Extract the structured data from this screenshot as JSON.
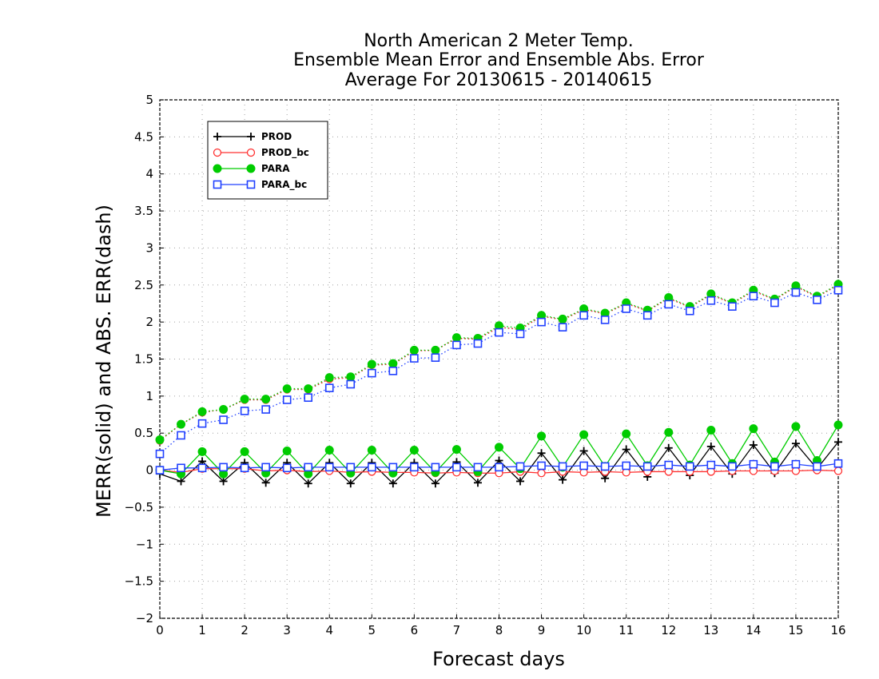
{
  "chart_data": {
    "type": "line",
    "title": [
      "North American 2 Meter Temp.",
      "Ensemble Mean Error and Ensemble Abs. Error",
      "Average For 20130615 - 20140615"
    ],
    "xlabel": "Forecast days",
    "ylabel": "MERR(solid) and ABS. ERR(dash)",
    "xlim": [
      0,
      16
    ],
    "ylim": [
      -2,
      5
    ],
    "x_ticks": [
      0,
      1,
      2,
      3,
      4,
      5,
      6,
      7,
      8,
      9,
      10,
      11,
      12,
      13,
      14,
      15,
      16
    ],
    "y_ticks": [
      -2,
      -1.5,
      -1,
      -0.5,
      0,
      0.5,
      1,
      1.5,
      2,
      2.5,
      3,
      3.5,
      4,
      4.5,
      5
    ],
    "grid": true,
    "legend_position": "top-left",
    "x": [
      0,
      0.5,
      1,
      1.5,
      2,
      2.5,
      3,
      3.5,
      4,
      4.5,
      5,
      5.5,
      6,
      6.5,
      7,
      7.5,
      8,
      8.5,
      9,
      9.5,
      10,
      10.5,
      11,
      11.5,
      12,
      12.5,
      13,
      13.5,
      14,
      14.5,
      15,
      15.5,
      16
    ],
    "series": [
      {
        "name": "PROD",
        "color": "#000000",
        "marker": "plus",
        "merr": [
          -0.05,
          -0.15,
          0.12,
          -0.15,
          0.1,
          -0.17,
          0.1,
          -0.18,
          0.1,
          -0.18,
          0.1,
          -0.18,
          0.1,
          -0.18,
          0.11,
          -0.17,
          0.13,
          -0.15,
          0.23,
          -0.13,
          0.26,
          -0.11,
          0.28,
          -0.09,
          0.3,
          -0.07,
          0.32,
          -0.05,
          0.34,
          -0.04,
          0.36,
          0.02,
          0.38
        ],
        "abs_err": [
          0.4,
          0.62,
          0.78,
          0.82,
          0.95,
          0.95,
          1.09,
          1.09,
          1.23,
          1.25,
          1.42,
          1.43,
          1.61,
          1.62,
          1.78,
          1.77,
          1.93,
          1.9,
          2.08,
          2.03,
          2.17,
          2.11,
          2.25,
          2.15,
          2.32,
          2.2,
          2.37,
          2.25,
          2.42,
          2.3,
          2.48,
          2.34,
          2.5
        ]
      },
      {
        "name": "PROD_bc",
        "color": "#ff3030",
        "marker": "open-circle",
        "merr": [
          0.0,
          -0.03,
          0.02,
          0.02,
          0.02,
          -0.01,
          0.0,
          -0.02,
          -0.01,
          -0.03,
          -0.02,
          -0.03,
          -0.03,
          -0.04,
          -0.03,
          -0.04,
          -0.04,
          -0.02,
          -0.04,
          -0.02,
          -0.03,
          -0.02,
          -0.03,
          -0.02,
          -0.02,
          -0.02,
          -0.02,
          -0.01,
          -0.01,
          -0.01,
          -0.01,
          0.0,
          -0.01
        ],
        "abs_err": [
          0.4,
          0.62,
          0.78,
          0.82,
          0.95,
          0.95,
          1.09,
          1.09,
          1.23,
          1.25,
          1.42,
          1.43,
          1.61,
          1.62,
          1.78,
          1.77,
          1.93,
          1.9,
          2.08,
          2.03,
          2.17,
          2.11,
          2.25,
          2.15,
          2.32,
          2.2,
          2.37,
          2.25,
          2.42,
          2.3,
          2.48,
          2.34,
          2.5
        ]
      },
      {
        "name": "PARA",
        "color": "#00cc00",
        "marker": "filled-circle",
        "merr": [
          0.0,
          -0.05,
          0.25,
          -0.05,
          0.25,
          -0.04,
          0.26,
          -0.05,
          0.27,
          -0.04,
          0.27,
          -0.04,
          0.27,
          -0.03,
          0.28,
          -0.02,
          0.31,
          0.02,
          0.46,
          0.04,
          0.48,
          0.05,
          0.49,
          0.06,
          0.51,
          0.07,
          0.54,
          0.09,
          0.56,
          0.11,
          0.59,
          0.13,
          0.61
        ],
        "abs_err": [
          0.41,
          0.62,
          0.79,
          0.82,
          0.96,
          0.96,
          1.1,
          1.1,
          1.25,
          1.26,
          1.43,
          1.44,
          1.62,
          1.62,
          1.79,
          1.78,
          1.95,
          1.92,
          2.09,
          2.04,
          2.18,
          2.12,
          2.26,
          2.16,
          2.33,
          2.21,
          2.38,
          2.26,
          2.43,
          2.31,
          2.49,
          2.35,
          2.51
        ]
      },
      {
        "name": "PARA_bc",
        "color": "#2040ff",
        "marker": "open-square",
        "merr": [
          0.0,
          0.03,
          0.03,
          0.04,
          0.03,
          0.04,
          0.03,
          0.04,
          0.04,
          0.04,
          0.04,
          0.04,
          0.04,
          0.04,
          0.04,
          0.04,
          0.04,
          0.05,
          0.06,
          0.05,
          0.06,
          0.05,
          0.06,
          0.05,
          0.07,
          0.05,
          0.07,
          0.05,
          0.08,
          0.05,
          0.08,
          0.05,
          0.09
        ],
        "abs_err": [
          0.22,
          0.47,
          0.63,
          0.68,
          0.8,
          0.82,
          0.95,
          0.98,
          1.11,
          1.16,
          1.31,
          1.34,
          1.51,
          1.52,
          1.69,
          1.71,
          1.86,
          1.84,
          2.0,
          1.93,
          2.09,
          2.03,
          2.18,
          2.09,
          2.24,
          2.15,
          2.29,
          2.21,
          2.35,
          2.26,
          2.4,
          2.3,
          2.43
        ]
      }
    ]
  }
}
